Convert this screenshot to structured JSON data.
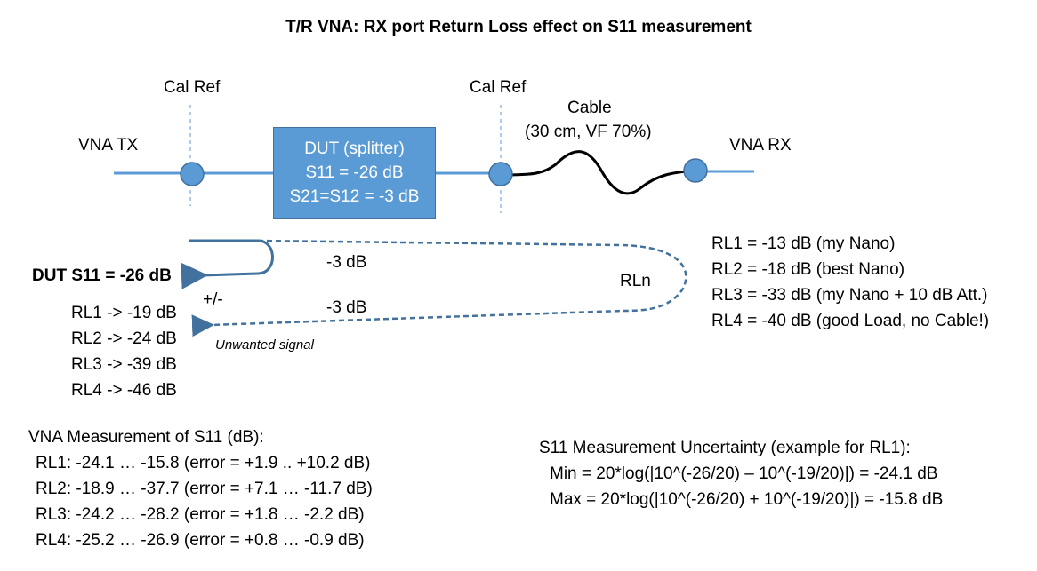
{
  "title": "T/R VNA: RX port Return Loss effect on S11 measurement",
  "cal_ref_left": "Cal Ref",
  "cal_ref_right": "Cal Ref",
  "cable_label": "Cable",
  "cable_spec": "(30 cm, VF 70%)",
  "vna_tx": "VNA TX",
  "vna_rx": "VNA RX",
  "dut": {
    "name": "DUT (splitter)",
    "s11": "S11 = -26 dB",
    "s21": "S21=S12 = -3 dB"
  },
  "dut_s11_label": "DUT S11 = -26 dB",
  "path_top_label": "-3 dB",
  "path_bottom_label": "-3 dB",
  "rln_label": "RLn",
  "plus_minus": "+/-",
  "unwanted_signal": "Unwanted signal",
  "rl_results": [
    "RL1 -> -19 dB",
    "RL2 -> -24 dB",
    "RL3 -> -39 dB",
    "RL4 -> -46 dB"
  ],
  "rl_definitions": [
    "RL1 = -13 dB (my Nano)",
    "RL2 = -18 dB (best Nano)",
    "RL3 = -33 dB (my Nano + 10 dB Att.)",
    "RL4 = -40 dB (good Load, no Cable!)"
  ],
  "measurement": {
    "heading": "VNA Measurement of S11 (dB):",
    "rows": [
      "RL1: -24.1 … -15.8 (error = +1.9 .. +10.2 dB)",
      "RL2: -18.9 … -37.7 (error = +7.1 … -11.7 dB)",
      "RL3: -24.2 … -28.2 (error = +1.8 … -2.2 dB)",
      "RL4: -25.2 … -26.9 (error = +0.8 … -0.9 dB)"
    ]
  },
  "uncertainty": {
    "heading": "S11 Measurement Uncertainty (example for RL1):",
    "min": "Min = 20*log(|10^(-26/20) – 10^(-19/20)|) = -24.1 dB",
    "max": "Max = 20*log(|10^(-26/20) + 10^(-19/20)|) = -15.8 dB"
  },
  "colors": {
    "line": "#5b9bd5",
    "box": "#5b9bd5",
    "arrow": "#41719c",
    "cable": "#000000"
  }
}
